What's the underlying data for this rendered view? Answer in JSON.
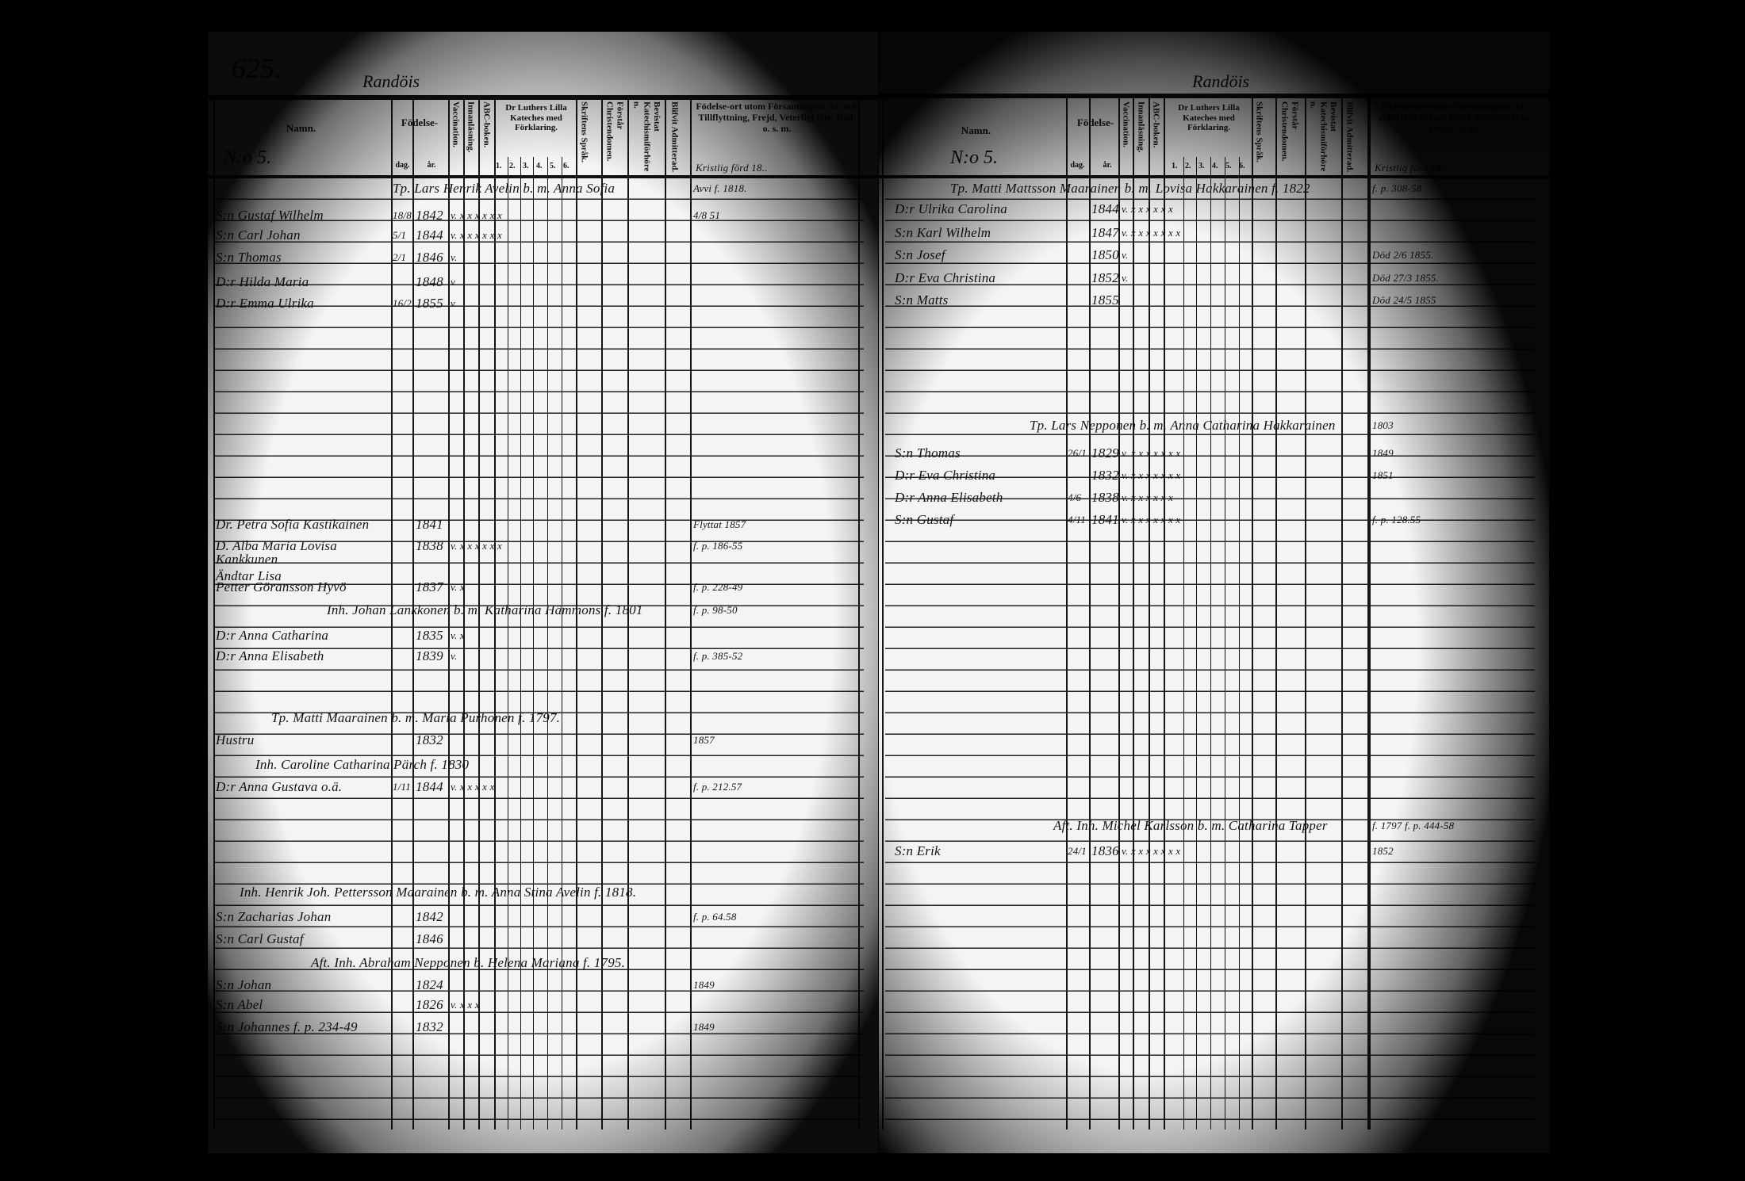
{
  "document": {
    "page_number": "625.",
    "place_left": "Randöis",
    "place_right": "Randöis"
  },
  "headers": {
    "name": "Namn.",
    "household_no_left": "N:o 5.",
    "household_no_right": "N:o 5.",
    "birth": "Födelse-",
    "day": "dag.",
    "year": "år.",
    "vaccination": "Vaccination.",
    "inmalning": "Innanläsning.",
    "abc": "ABC-boken.",
    "luther": "Dr Luthers Lilla Kateches med Förklaring.",
    "luther_cols": [
      "1.",
      "2.",
      "3.",
      "4.",
      "5.",
      "6."
    ],
    "skrift": "Skriftens Språk.",
    "forstar": "Förstår Christendomen.",
    "bevistat": "Bevistat Katechismiförhören.",
    "blifvit": "Blifvit Admitterad.",
    "remarks": "Födelse-ort utom Församlingen, Af- och Tillflyttning, Frejd, Veterligt lyte, Död, o. s. m.",
    "remarks_note_left": "Kristlig förd 18..",
    "remarks_note_right": "Kristlig förd 18.."
  },
  "left_entries": [
    {
      "household": "Tp. Lars Henrik Avelin b. m. Anna Sofia",
      "note": "Avvi f. 1818."
    },
    {
      "name": "S:n Gustaf Wilhelm",
      "day": "18/8",
      "year": "1842",
      "marks": "v. x x x x x x",
      "note": "4/8 51"
    },
    {
      "name": "S:n Carl Johan",
      "day": "5/1",
      "year": "1844",
      "marks": "v. x x x x x x"
    },
    {
      "name": "S:n Thomas",
      "day": "2/1",
      "year": "1846",
      "marks": "v."
    },
    {
      "name": "D:r Hilda Maria",
      "day": "",
      "year": "1848",
      "marks": "v."
    },
    {
      "name": "D:r Emma Ulrika",
      "day": "16/2",
      "year": "1855",
      "marks": "v."
    },
    {
      "name": "Dr. Petra Sofia Kastikainen",
      "day": "",
      "year": "1841",
      "marks": "",
      "note": "Flyttat 1857"
    },
    {
      "name": "D. Alba Maria Lovisa Kankkunen",
      "day": "",
      "year": "1838",
      "marks": "v. x x x x x x",
      "note": "f. p. 186-55"
    },
    {
      "name": "Ändtar Lisa",
      "day": "",
      "year": "",
      "marks": ""
    },
    {
      "name": "Petter Göransson Hyvö",
      "day": "",
      "year": "1837",
      "marks": "v. x",
      "note": "f. p. 228-49"
    },
    {
      "household": "Inh. Johan Lankkonen b. m. Katharina Hämmons f. 1801",
      "note": "f. p. 98-50"
    },
    {
      "name": "D:r Anna Catharina",
      "day": "",
      "year": "1835",
      "marks": "v. x"
    },
    {
      "name": "D:r Anna Elisabeth",
      "day": "",
      "year": "1839",
      "marks": "v.",
      "note": "f. p. 385-52"
    },
    {
      "household": "Tp. Matti Maarainen b. m. Maria Purhonen f. 1797."
    },
    {
      "name": "Hustru",
      "day": "",
      "year": "1832",
      "marks": "",
      "note": "1857"
    },
    {
      "household": "Inh. Caroline Catharina Pärch f. 1830"
    },
    {
      "name": "D:r Anna Gustava o.ä.",
      "day": "1/11",
      "year": "1844",
      "marks": "v. x x x x x",
      "note": "f. p. 212.57"
    },
    {
      "household": "Inh. Henrik Joh. Pettersson Maarainen b. m. Anna Stina Avelin f. 1818."
    },
    {
      "name": "S:n Zacharias Johan",
      "day": "",
      "year": "1842",
      "marks": "",
      "note": "f. p. 64.58"
    },
    {
      "name": "S:n Carl Gustaf",
      "day": "",
      "year": "1846",
      "marks": ""
    },
    {
      "household": "Aft. Inh. Abraham Nepponen b. Helena Mariana f. 1795."
    },
    {
      "name": "S:n Johan",
      "day": "",
      "year": "1824",
      "marks": "",
      "note": "1849"
    },
    {
      "name": "S:n Abel",
      "day": "",
      "year": "1826",
      "marks": "v. x x x"
    },
    {
      "name": "S:n Johannes f. p. 234-49",
      "day": "",
      "year": "1832",
      "marks": "",
      "note": "1849"
    }
  ],
  "right_entries": [
    {
      "household": "Tp. Matti Mattsson Maarainen b. m. Lovisa Hakkarainen f. 1822",
      "note": "f. p. 308-58"
    },
    {
      "name": "D:r Ulrika Carolina",
      "day": "",
      "year": "1844",
      "marks": "v. x x x x x x"
    },
    {
      "name": "S:n Karl Wilhelm",
      "day": "",
      "year": "1847",
      "marks": "v. x x x x x x x"
    },
    {
      "name": "S:n Josef",
      "day": "",
      "year": "1850",
      "marks": "v.",
      "note": "Död 2/6 1855."
    },
    {
      "name": "D:r Eva Christina",
      "day": "",
      "year": "1852",
      "marks": "v.",
      "note": "Död 27/3 1855."
    },
    {
      "name": "S:n Matts",
      "day": "",
      "year": "1855",
      "marks": "",
      "note": "Död 24/5 1855"
    },
    {
      "household": "Tp. Lars Nepponen b. m. Anna Catharina Hakkarainen",
      "note": "1803"
    },
    {
      "name": "S:n Thomas",
      "day": "26/1",
      "year": "1829",
      "marks": "v. x x x x x x x",
      "note": "1849"
    },
    {
      "name": "D:r Eva Christina",
      "day": "",
      "year": "1832",
      "marks": "v. x x x x x x x",
      "note": "1851"
    },
    {
      "name": "D:r Anna Elisabeth",
      "day": "4/6",
      "year": "1838",
      "marks": "v. x x x x x x"
    },
    {
      "name": "S:n Gustaf",
      "day": "4/11",
      "year": "1841",
      "marks": "v. x x x x x x x",
      "note": "f. p. 128.55"
    },
    {
      "household": "Aft. Inh. Michel Karlsson b. m. Catharina Tapper",
      "note": "f. 1797 f. p. 444-58"
    },
    {
      "name": "S:n Erik",
      "day": "24/1",
      "year": "1836",
      "marks": "v. x x x x x x x",
      "note": "1852"
    }
  ]
}
